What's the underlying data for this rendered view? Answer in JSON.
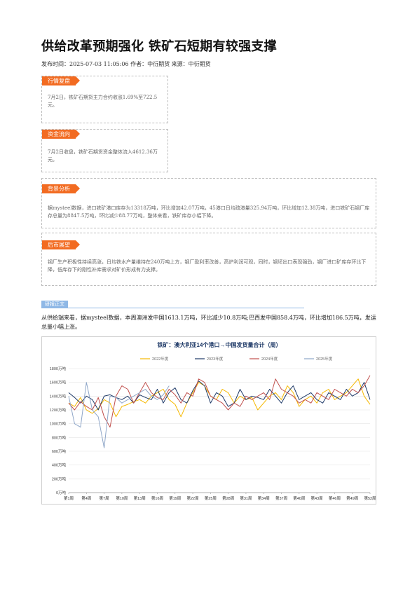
{
  "article": {
    "title": "供给改革预期强化 铁矿石短期有较强支撑",
    "meta": "发布时间：2025-07-03 11:05:06 作者：中衍期货 来源：中衍期货"
  },
  "sections": [
    {
      "tag": "行情复盘",
      "text": "7月2日，铁矿石期货主力合约收涨1.69%至722.5元。"
    },
    {
      "tag": "资金流向",
      "text": "7月2日收盘，铁矿石期货资金整体流入4612.36万元。"
    },
    {
      "tag": "背景分析",
      "text": "据mysteel数据，进口铁矿港口库存为13318万吨，环比增加42.07万吨，45港口日均疏港量325.94万吨，环比增加12.38万吨，进口铁矿石钢厂库存总量为8847.5万吨，环比减少88.77万吨，整体来看，铁矿库存小幅下降。"
    },
    {
      "tag": "后市展望",
      "text": "钢厂生产积极性持续高涨，日均铁水产量维持在240万吨上方，钢厂盈利率改善，高炉利润可观，同时，钢坯出口表现强劲，钢厂进口矿库存环比下降，低库存下的刚性补库需求对矿价形成有力支撑。"
    }
  ],
  "research": {
    "tag": "研报正文",
    "paragraph": "从供给端来看，据mysteel数据，本周澳洲发中国1613.1万吨，环比减少10.8万吨;巴西发中国858.4万吨，环比增加186.5万吨，发运总量小幅上涨。"
  },
  "chart_data": {
    "type": "line",
    "title": "铁矿：澳大利亚14个港口→中国发货量合计（周）",
    "ylim": [
      0,
      1800
    ],
    "yticks": [
      "0万吨",
      "200万吨",
      "400万吨",
      "600万吨",
      "800万吨",
      "1000万吨",
      "1200万吨",
      "1400万吨",
      "1600万吨",
      "1800万吨"
    ],
    "xtick_labels": [
      "第1周",
      "第4周",
      "第7周",
      "第10周",
      "第13周",
      "第16周",
      "第19周",
      "第22周",
      "第25周",
      "第28周",
      "第31周",
      "第34周",
      "第37周",
      "第40周",
      "第43周",
      "第46周",
      "第49周",
      "第52周"
    ],
    "x": [
      1,
      2,
      3,
      4,
      5,
      6,
      7,
      8,
      9,
      10,
      11,
      12,
      13,
      14,
      15,
      16,
      17,
      18,
      19,
      20,
      21,
      22,
      23,
      24,
      25,
      26,
      27,
      28,
      29,
      30,
      31,
      32,
      33,
      34,
      35,
      36,
      37,
      38,
      39,
      40,
      41,
      42,
      43,
      44,
      45,
      46,
      47,
      48,
      49,
      50,
      51,
      52
    ],
    "legend": "top",
    "grid": "horizontal",
    "colors": [
      "#f5b800",
      "#1f3a68",
      "#c0504d",
      "#8ea6c8"
    ],
    "series": [
      {
        "name": "2022年度",
        "values": [
          1300,
          1250,
          1380,
          1200,
          1150,
          1220,
          1350,
          1300,
          1100,
          1250,
          1280,
          1320,
          1350,
          1300,
          1400,
          1450,
          1500,
          1350,
          1280,
          1100,
          1300,
          1450,
          1600,
          1550,
          1400,
          1350,
          1500,
          1450,
          1300,
          1400,
          1350,
          1380,
          1200,
          1300,
          1400,
          1450,
          1350,
          1550,
          1450,
          1250,
          1350,
          1400,
          1300,
          1450,
          1500,
          1350,
          1400,
          1450,
          1550,
          1650,
          1400,
          1280
        ]
      },
      {
        "name": "2023年度",
        "values": [
          1450,
          1380,
          1300,
          1400,
          1350,
          1200,
          1400,
          1420,
          1380,
          1350,
          1400,
          1300,
          1420,
          1380,
          1350,
          1500,
          1300,
          1450,
          1520,
          1350,
          1300,
          1480,
          1620,
          1550,
          1300,
          1450,
          1400,
          1250,
          1300,
          1500,
          1350,
          1400,
          1380,
          1350,
          1500,
          1400,
          1300,
          1450,
          1550,
          1350,
          1400,
          1450,
          1350,
          1300,
          1450,
          1400,
          1350,
          1500,
          1400,
          1450,
          1600,
          1350
        ]
      },
      {
        "name": "2024年度",
        "values": [
          1300,
          1200,
          1320,
          1250,
          1200,
          1380,
          1100,
          950,
          1400,
          1550,
          1500,
          1300,
          1450,
          1600,
          1450,
          1380,
          1350,
          1500,
          1420,
          1300,
          1450,
          1400,
          1650,
          1600,
          1400,
          1350,
          1300,
          1200,
          1300,
          1250,
          1400,
          1350,
          1400,
          1450,
          1350,
          1650,
          1500,
          1450,
          1400,
          1300,
          1350,
          1300,
          1450,
          1400,
          1350,
          1500,
          1450,
          1400,
          1500,
          1450,
          1550,
          1700
        ]
      },
      {
        "name": "2025年度",
        "values": [
          1400,
          1000,
          950,
          1600,
          1200,
          1100,
          650,
          1400,
          1380,
          1300,
          1350,
          1400,
          1450,
          1500,
          1400,
          1350,
          1420,
          1550,
          null,
          null,
          null,
          null,
          null,
          null,
          null,
          null,
          null,
          null,
          null,
          null,
          null,
          null,
          null,
          null,
          null,
          null,
          null,
          null,
          null,
          null,
          null,
          null,
          null,
          null,
          null,
          null,
          null,
          null,
          null,
          null,
          null,
          null
        ]
      }
    ]
  }
}
